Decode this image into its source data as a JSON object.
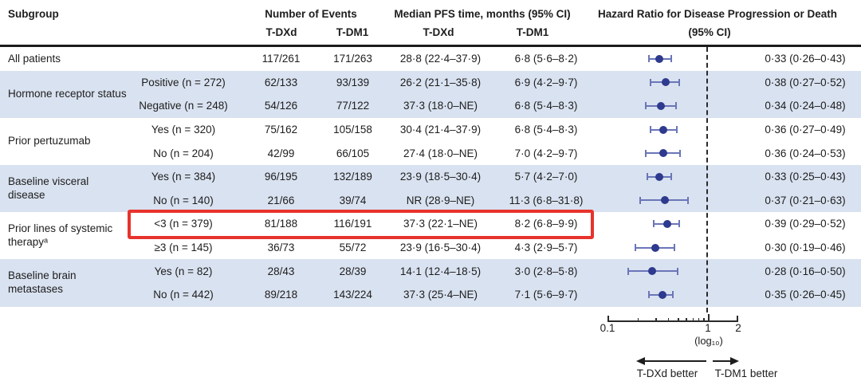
{
  "figure": {
    "direction_labels": {
      "left": "T-DXd better",
      "right": "T-DM1 better"
    },
    "scale_label": "(log₁₀)"
  },
  "colors": {
    "marker_dot": "#2d3a8e",
    "ci_line": "#6a76b8",
    "row_shade": "#d9e2f0",
    "highlight_red": "#e8322c",
    "axis_line": "#2a2a2a",
    "text": "#1d1d1d"
  },
  "chart_data": {
    "type": "scatter",
    "variant": "forest-plot",
    "title": "Hazard Ratio for Disease Progression or Death",
    "legend_position": "none",
    "grid": false,
    "columns": {
      "subgroup": "Subgroup",
      "events_title": "Number of Events",
      "events_sub1": "T-DXd",
      "events_sub2": "T-DM1",
      "median_title": "Median PFS time, months (95% CI)",
      "median_sub1": "T-DXd",
      "median_sub2": "T-DM1",
      "hr_title": "Hazard Ratio for Disease Progression or Death",
      "hr_sub": "(95% CI)"
    },
    "x_axis": {
      "scale": "log10",
      "min": 0.1,
      "max": 2,
      "reference_line": 1,
      "labeled_ticks": [
        {
          "value": 0.1,
          "label": "0.1"
        },
        {
          "value": 1,
          "label": "1"
        },
        {
          "value": 2,
          "label": "2"
        }
      ],
      "minor_ticks": [
        0.2,
        0.3,
        0.4,
        0.5,
        0.6,
        0.7,
        0.8,
        0.9
      ]
    },
    "groups": [
      {
        "label": "All patients",
        "shaded": false,
        "rows": [
          {
            "level": "",
            "events_tdxd": "117/261",
            "events_tdm1": "171/263",
            "median_tdxd": "28·8 (22·4–37·9)",
            "median_tdm1": "6·8 (5·6–8·2)",
            "hr": 0.33,
            "ci_low": 0.26,
            "ci_high": 0.43,
            "hr_text": "0·33 (0·26–0·43)"
          }
        ]
      },
      {
        "label": "Hormone receptor status",
        "shaded": true,
        "rows": [
          {
            "level": "Positive (n = 272)",
            "events_tdxd": "62/133",
            "events_tdm1": "93/139",
            "median_tdxd": "26·2 (21·1–35·8)",
            "median_tdm1": "6·9 (4·2–9·7)",
            "hr": 0.38,
            "ci_low": 0.27,
            "ci_high": 0.52,
            "hr_text": "0·38 (0·27–0·52)"
          },
          {
            "level": "Negative (n = 248)",
            "events_tdxd": "54/126",
            "events_tdm1": "77/122",
            "median_tdxd": "37·3 (18·0–NE)",
            "median_tdm1": "6·8 (5·4–8·3)",
            "hr": 0.34,
            "ci_low": 0.24,
            "ci_high": 0.48,
            "hr_text": "0·34 (0·24–0·48)"
          }
        ]
      },
      {
        "label": "Prior pertuzumab",
        "shaded": false,
        "rows": [
          {
            "level": "Yes (n = 320)",
            "events_tdxd": "75/162",
            "events_tdm1": "105/158",
            "median_tdxd": "30·4 (21·4–37·9)",
            "median_tdm1": "6·8 (5·4–8·3)",
            "hr": 0.36,
            "ci_low": 0.27,
            "ci_high": 0.49,
            "hr_text": "0·36 (0·27–0·49)"
          },
          {
            "level": "No (n = 204)",
            "events_tdxd": "42/99",
            "events_tdm1": "66/105",
            "median_tdxd": "27·4 (18·0–NE)",
            "median_tdm1": "7·0 (4·2–9·7)",
            "hr": 0.36,
            "ci_low": 0.24,
            "ci_high": 0.53,
            "hr_text": "0·36 (0·24–0·53)"
          }
        ]
      },
      {
        "label": "Baseline visceral disease",
        "shaded": true,
        "rows": [
          {
            "level": "Yes (n = 384)",
            "events_tdxd": "96/195",
            "events_tdm1": "132/189",
            "median_tdxd": "23·9 (18·5–30·4)",
            "median_tdm1": "5·7 (4·2–7·0)",
            "hr": 0.33,
            "ci_low": 0.25,
            "ci_high": 0.43,
            "hr_text": "0·33 (0·25–0·43)"
          },
          {
            "level": "No (n = 140)",
            "events_tdxd": "21/66",
            "events_tdm1": "39/74",
            "median_tdxd": "NR (28·9–NE)",
            "median_tdm1": "11·3 (6·8–31·8)",
            "hr": 0.37,
            "ci_low": 0.21,
            "ci_high": 0.63,
            "hr_text": "0·37 (0·21–0·63)"
          }
        ]
      },
      {
        "label": "Prior lines of systemic therapyᵃ",
        "shaded": false,
        "rows": [
          {
            "level": "<3 (n = 379)",
            "events_tdxd": "81/188",
            "events_tdm1": "116/191",
            "median_tdxd": "37·3 (22·1–NE)",
            "median_tdm1": "8·2 (6·8–9·9)",
            "hr": 0.39,
            "ci_low": 0.29,
            "ci_high": 0.52,
            "hr_text": "0·39 (0·29–0·52)",
            "highlighted": true
          },
          {
            "level": "≥3 (n = 145)",
            "events_tdxd": "36/73",
            "events_tdm1": "55/72",
            "median_tdxd": "23·9 (16·5–30·4)",
            "median_tdm1": "4·3 (2·9–5·7)",
            "hr": 0.3,
            "ci_low": 0.19,
            "ci_high": 0.46,
            "hr_text": "0·30 (0·19–0·46)"
          }
        ]
      },
      {
        "label": "Baseline brain metastases",
        "shaded": true,
        "rows": [
          {
            "level": "Yes (n = 82)",
            "events_tdxd": "28/43",
            "events_tdm1": "28/39",
            "median_tdxd": "14·1 (12·4–18·5)",
            "median_tdm1": "3·0 (2·8–5·8)",
            "hr": 0.28,
            "ci_low": 0.16,
            "ci_high": 0.5,
            "hr_text": "0·28 (0·16–0·50)"
          },
          {
            "level": "No (n = 442)",
            "events_tdxd": "89/218",
            "events_tdm1": "143/224",
            "median_tdxd": "37·3 (25·4–NE)",
            "median_tdm1": "7·1 (5·6–9·7)",
            "hr": 0.35,
            "ci_low": 0.26,
            "ci_high": 0.45,
            "hr_text": "0·35 (0·26–0·45)"
          }
        ]
      }
    ]
  }
}
